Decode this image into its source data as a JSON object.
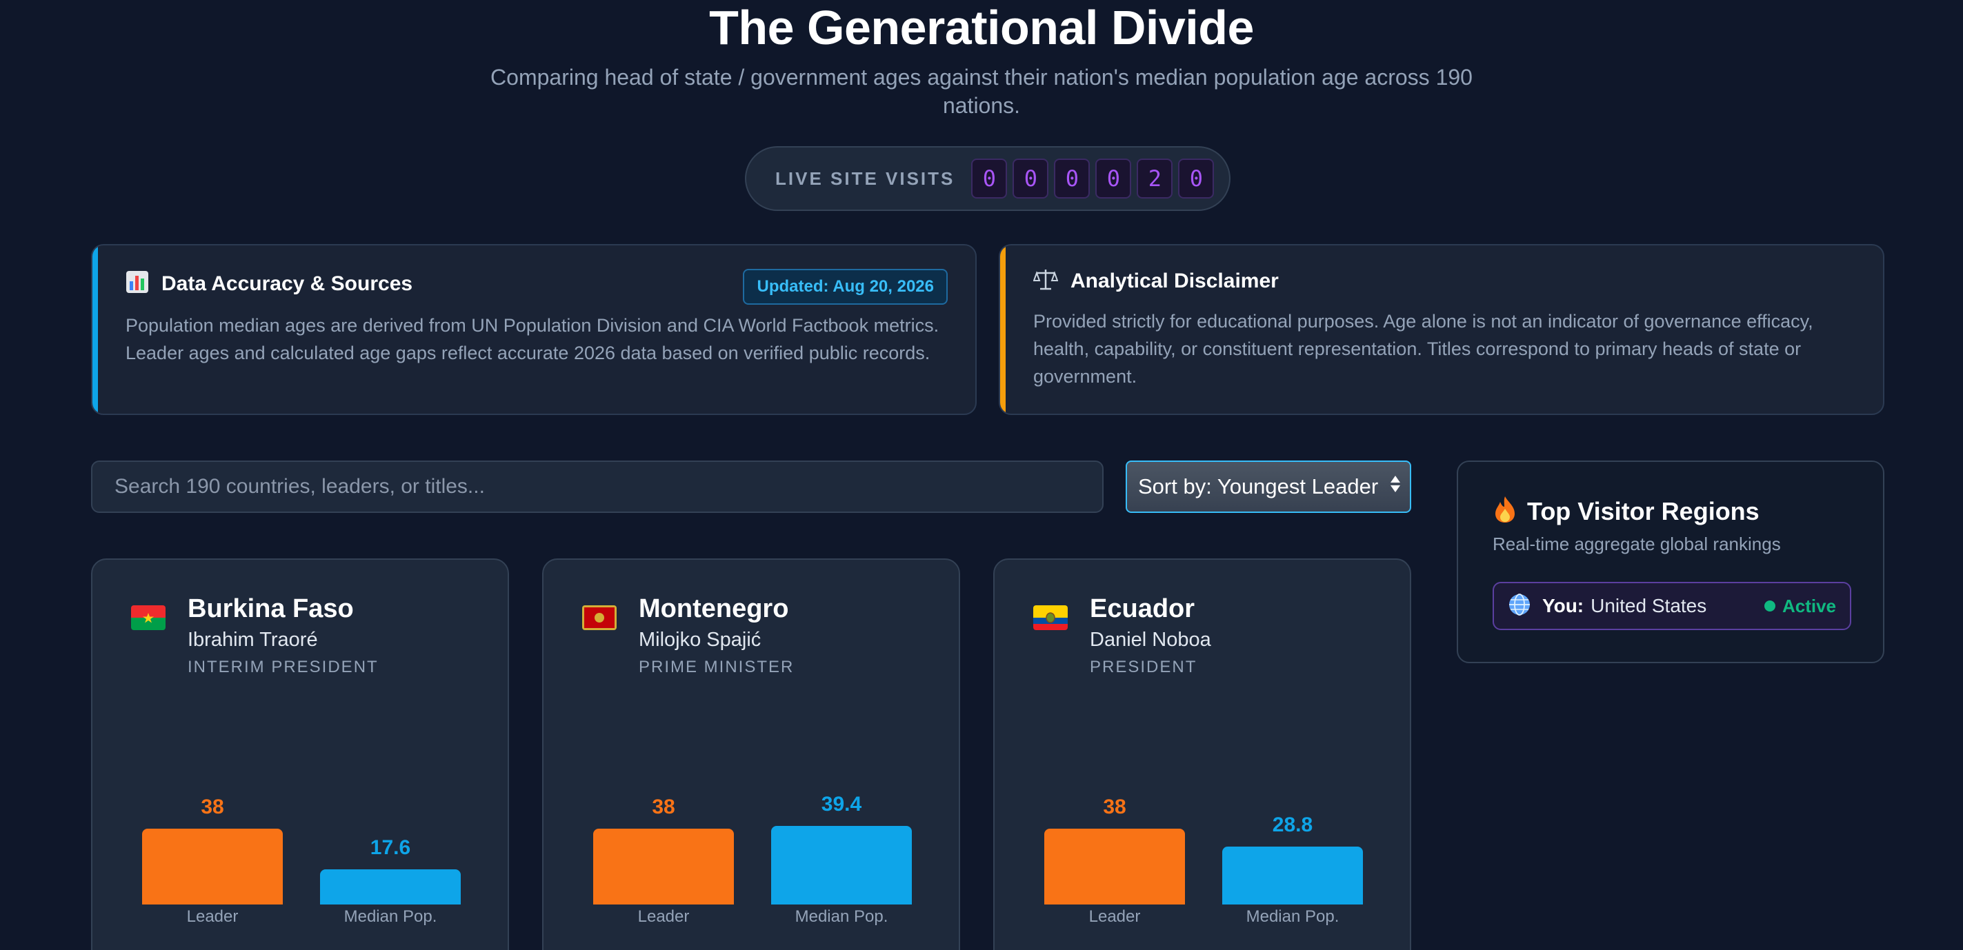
{
  "header": {
    "title": "The Generational Divide",
    "subtitle": "Comparing head of state / government ages against their nation's median population age across 190 nations."
  },
  "visits": {
    "label": "LIVE SITE VISITS",
    "digits": [
      "0",
      "0",
      "0",
      "0",
      "2",
      "0"
    ]
  },
  "info": {
    "sources": {
      "icon": "bar-chart-icon",
      "title": "Data Accuracy & Sources",
      "badge": "Updated: Aug 20, 2026",
      "body": "Population median ages are derived from UN Population Division and CIA World Factbook metrics. Leader ages and calculated age gaps reflect accurate 2026 data based on verified public records.",
      "accent": "#0ea5e9"
    },
    "disclaimer": {
      "icon": "balance-scale-icon",
      "title": "Analytical Disclaimer",
      "body": "Provided strictly for educational purposes. Age alone is not an indicator of governance efficacy, health, capability, or constituent representation. Titles correspond to primary heads of state or government.",
      "accent": "#f59e0b"
    }
  },
  "search": {
    "placeholder": "Search 190 countries, leaders, or titles..."
  },
  "sort": {
    "selected": "Sort by: Youngest Leader"
  },
  "cards": [
    {
      "country": "Burkina Faso",
      "leader": "Ibrahim Traoré",
      "title": "INTERIM PRESIDENT",
      "flag": "burkina-faso-flag-icon",
      "leader_age": "38",
      "median_age": "17.6",
      "leader_label": "Leader",
      "median_label": "Median Pop."
    },
    {
      "country": "Montenegro",
      "leader": "Milojko Spajić",
      "title": "PRIME MINISTER",
      "flag": "montenegro-flag-icon",
      "leader_age": "38",
      "median_age": "39.4",
      "leader_label": "Leader",
      "median_label": "Median Pop."
    },
    {
      "country": "Ecuador",
      "leader": "Daniel Noboa",
      "title": "PRESIDENT",
      "flag": "ecuador-flag-icon",
      "leader_age": "38",
      "median_age": "28.8",
      "leader_label": "Leader",
      "median_label": "Median Pop."
    }
  ],
  "regions": {
    "icon": "fire-icon",
    "title": "Top Visitor Regions",
    "subtitle": "Real-time aggregate global rankings",
    "items": [
      {
        "icon": "globe-icon",
        "you_label": "You:",
        "country": "United States",
        "status": "Active"
      }
    ]
  },
  "colors": {
    "background": "#0f172a",
    "leader_bar": "#f97316",
    "median_bar": "#0ea5e9",
    "visits_digit": "#a855f7",
    "active": "#10b981"
  }
}
